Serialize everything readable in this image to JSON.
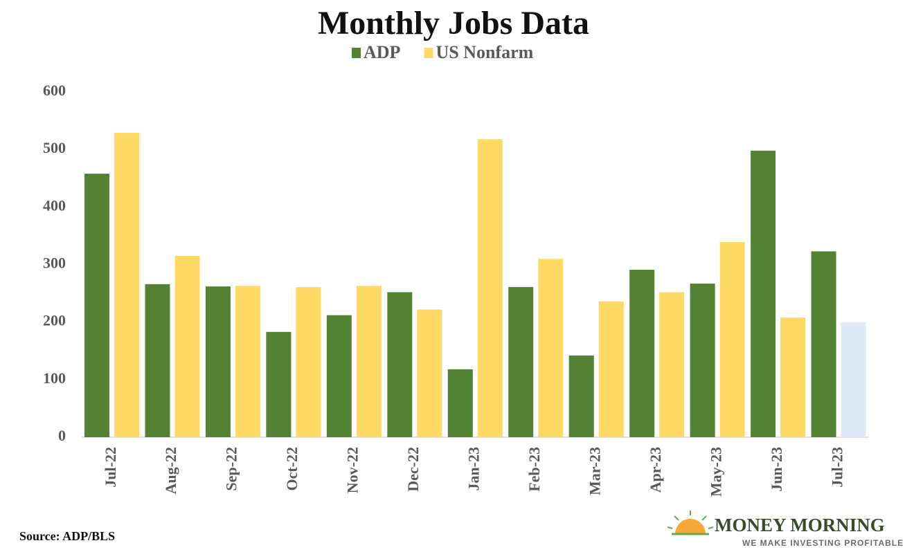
{
  "chart_data": {
    "type": "bar",
    "title": "Monthly Jobs Data",
    "source": "Source: ADP/BLS",
    "categories": [
      "Jul-22",
      "Aug-22",
      "Sep-22",
      "Oct-22",
      "Nov-22",
      "Dec-22",
      "Jan-23",
      "Feb-23",
      "Mar-23",
      "Apr-23",
      "May-23",
      "Jun-23",
      "Jul-23"
    ],
    "series": [
      {
        "name": "ADP",
        "color": "#548235",
        "values": [
          458,
          266,
          262,
          183,
          212,
          252,
          118,
          261,
          142,
          291,
          267,
          498,
          323
        ]
      },
      {
        "name": "US Nonfarm",
        "color": "#ffd966",
        "colors": [
          "#ffd966",
          "#ffd966",
          "#ffd966",
          "#ffd966",
          "#ffd966",
          "#ffd966",
          "#ffd966",
          "#ffd966",
          "#ffd966",
          "#ffd966",
          "#ffd966",
          "#ffd966",
          "#deebf7"
        ],
        "values": [
          529,
          315,
          263,
          261,
          263,
          222,
          518,
          310,
          236,
          252,
          339,
          208,
          200
        ]
      }
    ],
    "ylim": [
      0,
      600
    ],
    "yticks": [
      0,
      100,
      200,
      300,
      400,
      500,
      600
    ],
    "grid": false,
    "legend": "top"
  },
  "logo": {
    "name": "MONEY MORNING",
    "tagline": "WE MAKE INVESTING PROFITABLE"
  }
}
